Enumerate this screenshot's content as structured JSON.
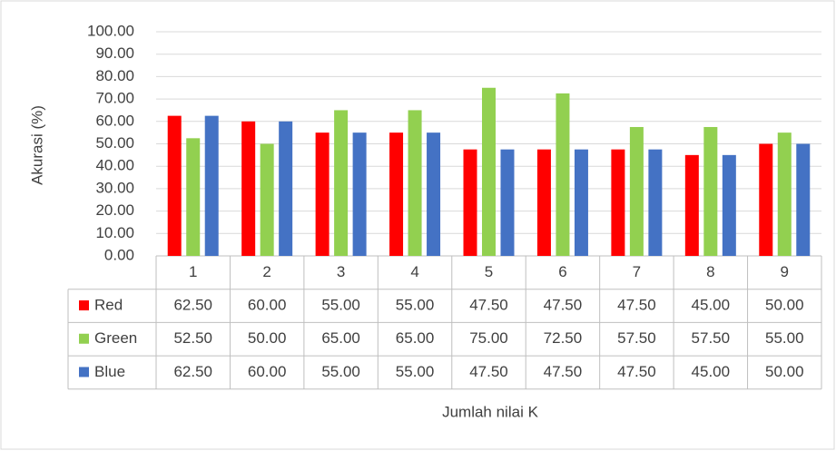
{
  "chart_data": {
    "type": "bar",
    "x_label": "Jumlah nilai K",
    "y_label": "Akurasi (%)",
    "categories": [
      "1",
      "2",
      "3",
      "4",
      "5",
      "6",
      "7",
      "8",
      "9"
    ],
    "series": [
      {
        "name": "Red",
        "color": "#ff0000",
        "values": [
          62.5,
          60,
          55,
          55,
          47.5,
          47.5,
          47.5,
          45,
          50
        ],
        "value_labels": [
          "62.50",
          "60.00",
          "55.00",
          "55.00",
          "47.50",
          "47.50",
          "47.50",
          "45.00",
          "50.00"
        ]
      },
      {
        "name": "Green",
        "color": "#92d050",
        "values": [
          52.5,
          50,
          65,
          65,
          75,
          72.5,
          57.5,
          57.5,
          55
        ],
        "value_labels": [
          "52.50",
          "50.00",
          "65.00",
          "65.00",
          "75.00",
          "72.50",
          "57.50",
          "57.50",
          "55.00"
        ]
      },
      {
        "name": "Blue",
        "color": "#4472c4",
        "values": [
          62.5,
          60,
          55,
          55,
          47.5,
          47.5,
          47.5,
          45,
          50
        ],
        "value_labels": [
          "62.50",
          "60.00",
          "55.00",
          "55.00",
          "47.50",
          "47.50",
          "47.50",
          "45.00",
          "50.00"
        ]
      }
    ],
    "ylim": [
      0,
      100
    ],
    "yticks": [
      {
        "value": 0,
        "label": "0.00"
      },
      {
        "value": 10,
        "label": "10.00"
      },
      {
        "value": 20,
        "label": "20.00"
      },
      {
        "value": 30,
        "label": "30.00"
      },
      {
        "value": 40,
        "label": "40.00"
      },
      {
        "value": 50,
        "label": "50.00"
      },
      {
        "value": 60,
        "label": "60.00"
      },
      {
        "value": 70,
        "label": "70.00"
      },
      {
        "value": 80,
        "label": "80.00"
      },
      {
        "value": 90,
        "label": "90.00"
      },
      {
        "value": 100,
        "label": "100.00"
      }
    ],
    "grid": true
  }
}
